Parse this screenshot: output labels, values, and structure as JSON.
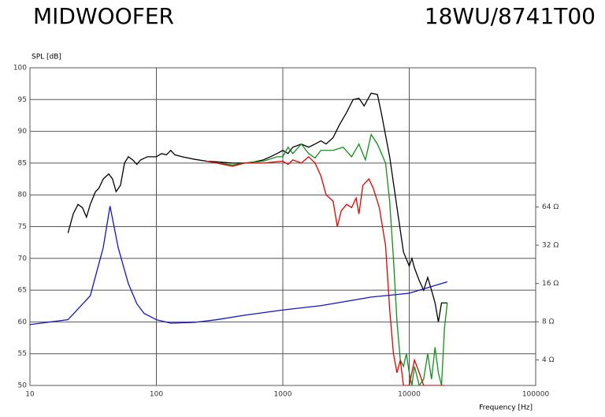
{
  "chart_data": {
    "type": "line",
    "title": "MIDWOOFER",
    "subtitle": "18WU/8741T00",
    "y_label": "SPL [dB]",
    "x_label": "Frequency [Hz]",
    "x_scale": "log",
    "y2_scale": "log",
    "grid": true,
    "xlim": [
      10,
      100000
    ],
    "xticks": [
      10,
      100,
      1000,
      10000,
      100000
    ],
    "ylim": [
      50,
      100
    ],
    "yticks": [
      50,
      55,
      60,
      65,
      70,
      75,
      80,
      85,
      90,
      95,
      100
    ],
    "y2lim": [
      2.52,
      798
    ],
    "y2ticks": [
      {
        "value": 4,
        "label": "4 Ω"
      },
      {
        "value": 8,
        "label": "8 Ω"
      },
      {
        "value": 16,
        "label": "16 Ω"
      },
      {
        "value": 32,
        "label": "32 Ω"
      },
      {
        "value": 64,
        "label": "64 Ω"
      }
    ],
    "series": [
      {
        "color": "#000000",
        "x": [
          20,
          22,
          24,
          26,
          28,
          30,
          33,
          35,
          38,
          42,
          45,
          48,
          52,
          56,
          60,
          65,
          70,
          75,
          85,
          100,
          110,
          120,
          130,
          140,
          160,
          200,
          250,
          300,
          400,
          500,
          600,
          700,
          800,
          900,
          1000,
          1100,
          1200,
          1400,
          1600,
          1800,
          2000,
          2200,
          2500,
          2800,
          3200,
          3600,
          4000,
          4400,
          5000,
          5600,
          6000,
          7000,
          8000,
          9000,
          10000,
          10500,
          11000,
          12000,
          13000,
          14000,
          15000,
          16000,
          17000,
          18000,
          20000
        ],
        "values": [
          74,
          77,
          78.5,
          78,
          76.5,
          78.5,
          80.5,
          81,
          82.5,
          83.3,
          82.5,
          80.5,
          81.5,
          85,
          86,
          85.5,
          84.8,
          85.5,
          86,
          86,
          86.5,
          86.3,
          87,
          86.3,
          86,
          85.6,
          85.3,
          85.2,
          85,
          85,
          85.2,
          85.5,
          86,
          86.5,
          87,
          86.5,
          87.5,
          88,
          87.5,
          88,
          88.5,
          88,
          89,
          91,
          93,
          95,
          95.2,
          94,
          96,
          95.8,
          93,
          86,
          78,
          71,
          68.8,
          70,
          68.5,
          66.5,
          65,
          67,
          65,
          63,
          60,
          63,
          63
        ]
      },
      {
        "color": "#10901a",
        "x": [
          250,
          300,
          400,
          500,
          700,
          900,
          1000,
          1100,
          1200,
          1400,
          1600,
          1800,
          2000,
          2500,
          3000,
          3500,
          4000,
          4500,
          5000,
          5600,
          6500,
          7000,
          7500,
          8000,
          8500,
          9000,
          9500,
          10000,
          10500,
          11000,
          12000,
          13000,
          14000,
          15000,
          16000,
          17000,
          18000,
          19000,
          20000
        ],
        "values": [
          85.3,
          85,
          84.7,
          85,
          85.3,
          86,
          86,
          87.5,
          86.5,
          88,
          86.5,
          85.8,
          87,
          87,
          87.5,
          86,
          88,
          85.5,
          89.5,
          88,
          85,
          79,
          70,
          60,
          54,
          53,
          55,
          52,
          50,
          53,
          50,
          51,
          55,
          51,
          56,
          52,
          50,
          59,
          63
        ]
      },
      {
        "color": "#e00000",
        "x": [
          250,
          300,
          400,
          500,
          700,
          1000,
          1100,
          1200,
          1400,
          1600,
          1800,
          2000,
          2200,
          2500,
          2700,
          2900,
          3200,
          3500,
          3800,
          4000,
          4300,
          4800,
          5200,
          5800,
          6500,
          7000,
          7500,
          8000,
          8500,
          9000,
          10000,
          11000,
          12000,
          13000,
          15000,
          17000,
          19000
        ],
        "values": [
          85.3,
          85,
          84.5,
          85,
          85,
          85.3,
          84.8,
          85.5,
          85,
          86,
          85,
          83,
          80,
          79,
          75,
          77.5,
          78.5,
          78,
          79.5,
          77,
          81.5,
          82.5,
          81,
          78,
          72,
          62,
          55,
          52,
          54,
          50,
          50,
          54,
          52,
          50,
          50,
          50,
          50
        ]
      },
      {
        "color": "#1414c0",
        "axis": "y2",
        "x": [
          10,
          20,
          30,
          38,
          43,
          50,
          60,
          70,
          80,
          100,
          130,
          200,
          300,
          500,
          1000,
          2000,
          5000,
          10000,
          20000
        ],
        "values": [
          7.6,
          8.3,
          12.8,
          30.7,
          65,
          30.4,
          16,
          11.1,
          9.3,
          8.3,
          7.8,
          7.9,
          8.3,
          9,
          9.9,
          10.7,
          12.5,
          13.4,
          16.5
        ]
      }
    ]
  }
}
